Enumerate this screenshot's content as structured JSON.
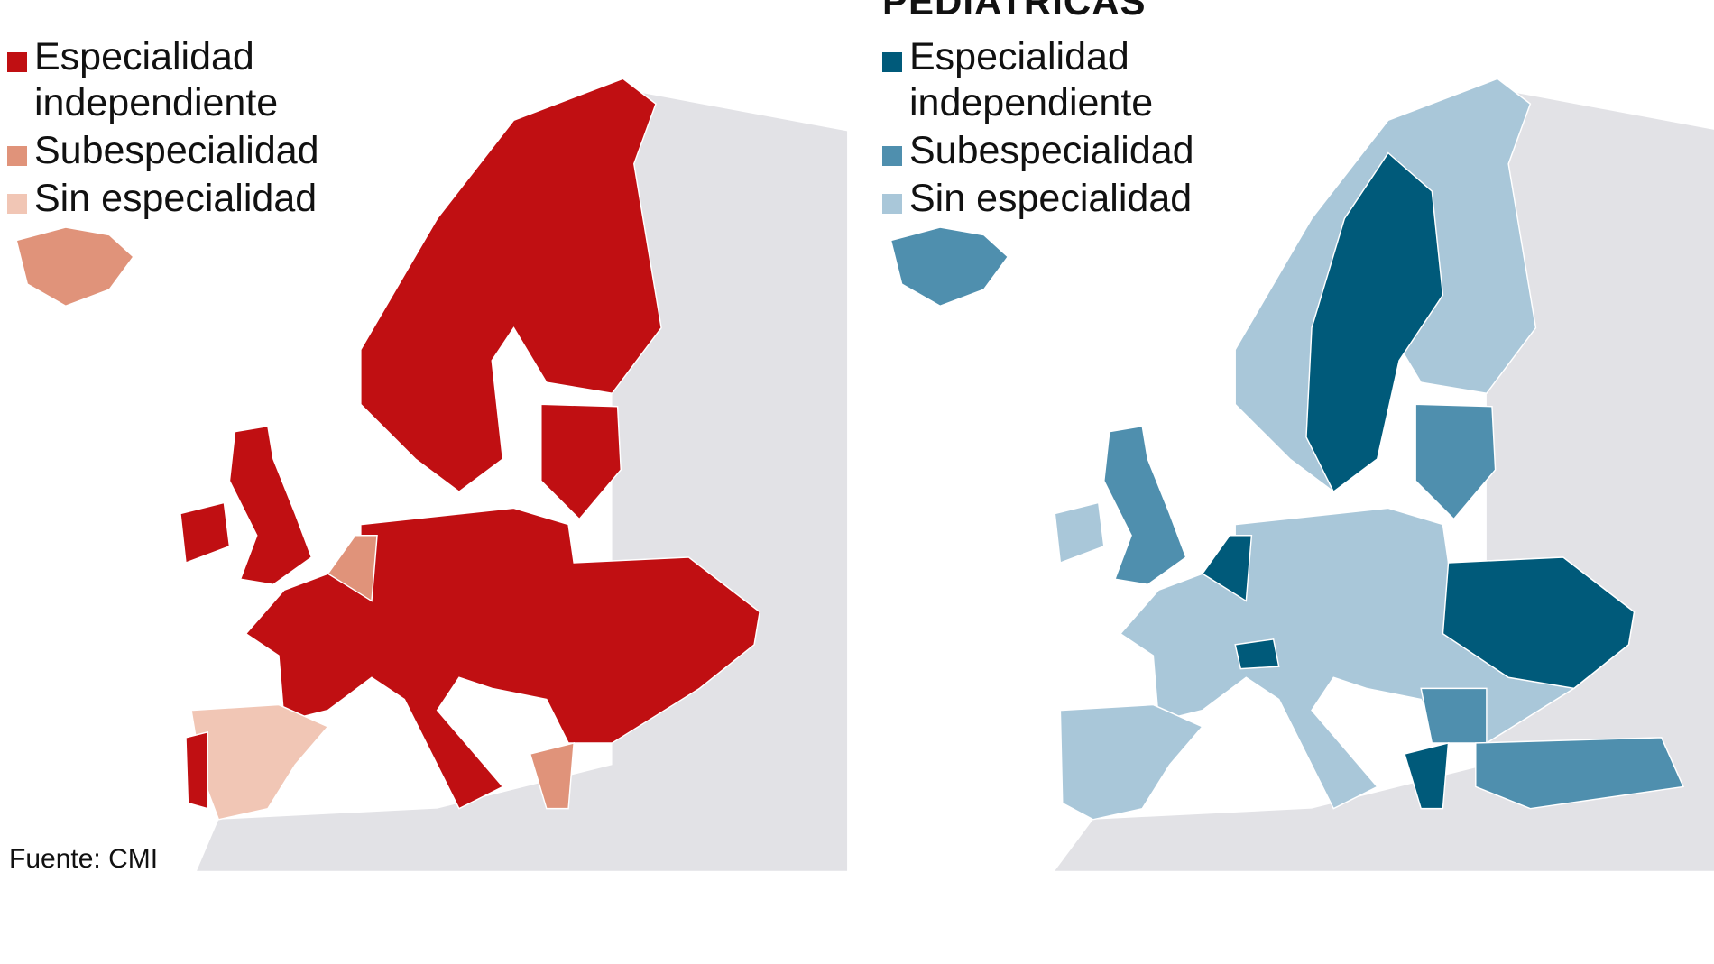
{
  "left_map": {
    "legend": [
      {
        "label": "Especialidad independiente",
        "color": "#c00f12"
      },
      {
        "label": "Subespecialidad",
        "color": "#e0937a"
      },
      {
        "label": "Sin especialidad",
        "color": "#f1c6b5"
      }
    ]
  },
  "right_map": {
    "title": "PEDIATRICAS",
    "legend": [
      {
        "label": "Especialidad independiente",
        "color": "#005a7a"
      },
      {
        "label": "Subespecialidad",
        "color": "#4f8fae"
      },
      {
        "label": "Sin especialidad",
        "color": "#a9c7d9"
      }
    ]
  },
  "source": "Fuente: CMI"
}
